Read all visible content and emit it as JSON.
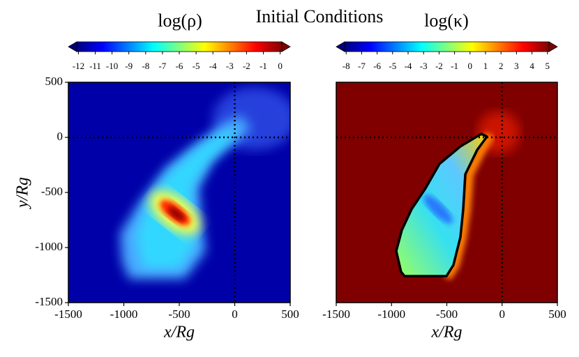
{
  "title": "Initial Conditions",
  "chart_data": [
    {
      "type": "heatmap",
      "colormap": "jet",
      "colorbar": {
        "label": "log(ρ)",
        "lim": [
          -12.1,
          0.1
        ],
        "ticks": [
          -12,
          -11,
          -10,
          -9,
          -8,
          -7,
          -6,
          -5,
          -4,
          -3,
          -2,
          -1,
          0
        ],
        "extend": "both"
      },
      "xlabel": "x/Rg",
      "ylabel": "y/Rg",
      "xlim": [
        -1500,
        500
      ],
      "ylim": [
        -1500,
        500
      ],
      "xticks": [
        -1500,
        -1000,
        -500,
        0,
        500
      ],
      "yticks": [
        -1500,
        -1000,
        -500,
        0,
        500
      ],
      "reference_lines": {
        "x": 0,
        "y": 0
      }
    },
    {
      "type": "heatmap",
      "colormap": "jet",
      "colorbar": {
        "label": "log(κ)",
        "lim": [
          -8.1,
          5.1
        ],
        "ticks": [
          -8,
          -7,
          -6,
          -5,
          -4,
          -3,
          -2,
          -1,
          0,
          1,
          2,
          3,
          4,
          5
        ],
        "extend": "both"
      },
      "xlabel": "x/Rg",
      "xlim": [
        -1500,
        500
      ],
      "ylim": [
        -1500,
        500
      ],
      "xticks": [
        -1500,
        -1000,
        -500,
        0,
        500
      ],
      "reference_lines": {
        "x": 0,
        "y": 0
      }
    }
  ]
}
